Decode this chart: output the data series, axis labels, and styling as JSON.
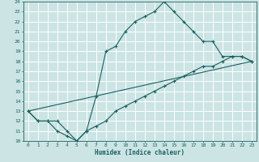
{
  "xlabel": "Humidex (Indice chaleur)",
  "xlim": [
    -0.5,
    23.5
  ],
  "ylim": [
    10,
    24
  ],
  "yticks": [
    10,
    11,
    12,
    13,
    14,
    15,
    16,
    17,
    18,
    19,
    20,
    21,
    22,
    23,
    24
  ],
  "xticks": [
    0,
    1,
    2,
    3,
    4,
    5,
    6,
    7,
    8,
    9,
    10,
    11,
    12,
    13,
    14,
    15,
    16,
    17,
    18,
    19,
    20,
    21,
    22,
    23
  ],
  "bg_color": "#cce4e4",
  "line_color": "#1a6060",
  "grid_color": "#ffffff",
  "line1_x": [
    0,
    1,
    2,
    3,
    4,
    5,
    6,
    7,
    8,
    9,
    10,
    11,
    12,
    13,
    14,
    15,
    16,
    17,
    18,
    19,
    20,
    21,
    22,
    23
  ],
  "line1_y": [
    13,
    12,
    12,
    12,
    11,
    10,
    11,
    14.5,
    19,
    19.5,
    21,
    22,
    22.5,
    23,
    24,
    23,
    22,
    21,
    20,
    20,
    18.5,
    18.5,
    18.5,
    18
  ],
  "line2_x": [
    0,
    1,
    2,
    3,
    4,
    5,
    6,
    7,
    8,
    9,
    10,
    11,
    12,
    13,
    14,
    15,
    16,
    17,
    18,
    19,
    20,
    21,
    22,
    23
  ],
  "line2_y": [
    13,
    12,
    12,
    11,
    10.5,
    10,
    11,
    11.5,
    12,
    13,
    13.5,
    14,
    14.5,
    15,
    15.5,
    16,
    16.5,
    17,
    17.5,
    17.5,
    18,
    18.5,
    18.5,
    18
  ],
  "line3_x": [
    0,
    23
  ],
  "line3_y": [
    13,
    18
  ]
}
